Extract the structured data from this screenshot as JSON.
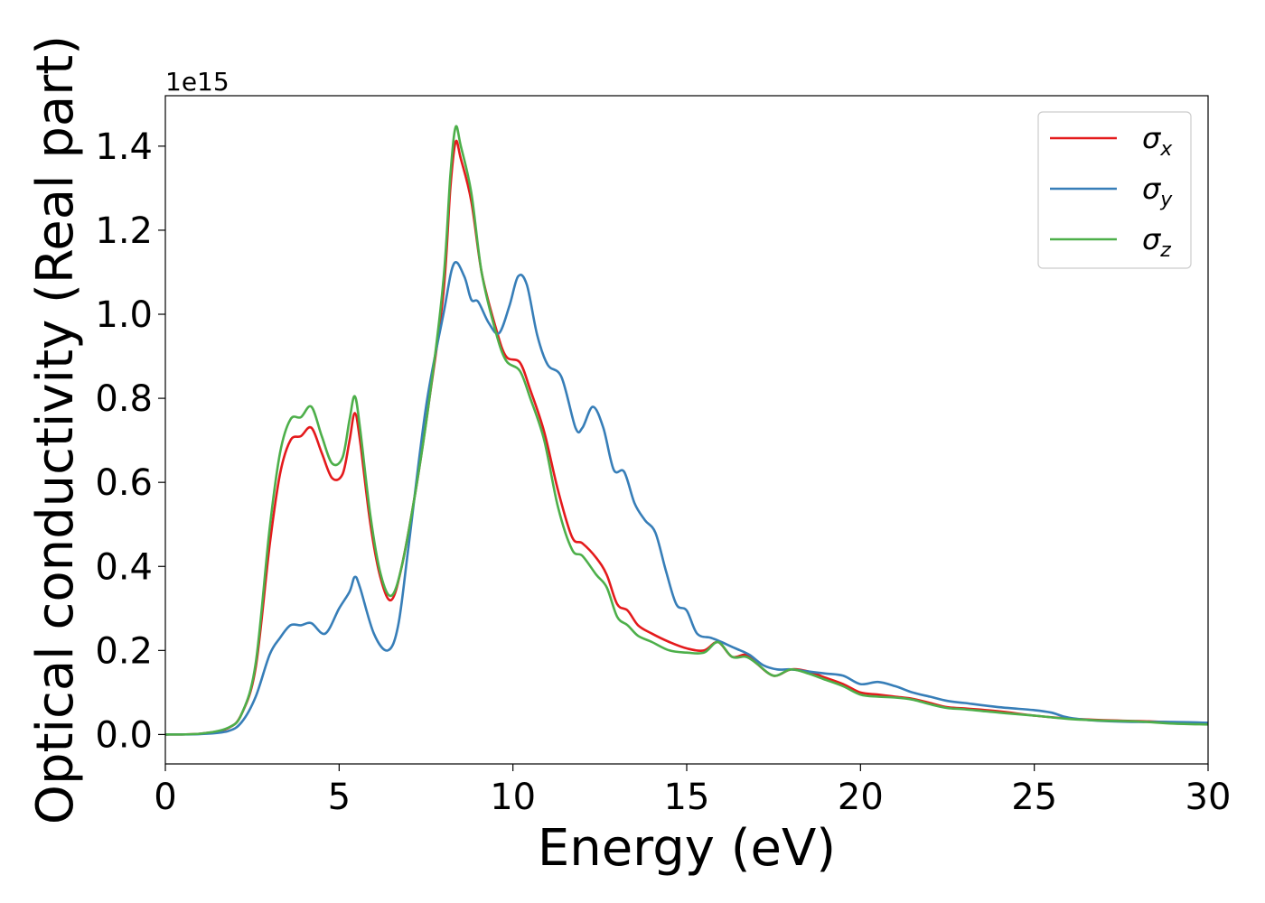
{
  "chart_data": {
    "type": "line",
    "xlabel": "Energy (eV)",
    "ylabel": "Optical conductivity (Real part)",
    "y_offset_label": "1e15",
    "xlim": [
      0,
      30
    ],
    "ylim": [
      -0.07,
      1.52
    ],
    "x_ticks": [
      0,
      5,
      10,
      15,
      20,
      25,
      30
    ],
    "x_tick_labels": [
      "0",
      "5",
      "10",
      "15",
      "20",
      "25",
      "30"
    ],
    "y_ticks": [
      0.0,
      0.2,
      0.4,
      0.6,
      0.8,
      1.0,
      1.2,
      1.4
    ],
    "y_tick_labels": [
      "0.0",
      "0.2",
      "0.4",
      "0.6",
      "0.8",
      "1.0",
      "1.2",
      "1.4"
    ],
    "grid": false,
    "legend_position": "top-right",
    "series": [
      {
        "name": "σx",
        "legend_base": "σ",
        "legend_sub": "x",
        "color": "#e41a1c",
        "points": [
          [
            0,
            0
          ],
          [
            1.0,
            0.002
          ],
          [
            1.8,
            0.015
          ],
          [
            2.2,
            0.05
          ],
          [
            2.6,
            0.16
          ],
          [
            3.0,
            0.45
          ],
          [
            3.3,
            0.62
          ],
          [
            3.6,
            0.7
          ],
          [
            3.9,
            0.71
          ],
          [
            4.2,
            0.73
          ],
          [
            4.5,
            0.67
          ],
          [
            4.8,
            0.61
          ],
          [
            5.1,
            0.62
          ],
          [
            5.3,
            0.7
          ],
          [
            5.45,
            0.765
          ],
          [
            5.6,
            0.7
          ],
          [
            5.9,
            0.5
          ],
          [
            6.2,
            0.37
          ],
          [
            6.5,
            0.32
          ],
          [
            6.8,
            0.4
          ],
          [
            7.2,
            0.58
          ],
          [
            7.6,
            0.8
          ],
          [
            8.0,
            1.05
          ],
          [
            8.2,
            1.3
          ],
          [
            8.35,
            1.41
          ],
          [
            8.5,
            1.37
          ],
          [
            8.8,
            1.27
          ],
          [
            9.1,
            1.1
          ],
          [
            9.5,
            0.97
          ],
          [
            9.8,
            0.9
          ],
          [
            10.2,
            0.885
          ],
          [
            10.5,
            0.82
          ],
          [
            10.9,
            0.72
          ],
          [
            11.3,
            0.58
          ],
          [
            11.7,
            0.47
          ],
          [
            12.0,
            0.455
          ],
          [
            12.4,
            0.42
          ],
          [
            12.7,
            0.38
          ],
          [
            13.0,
            0.31
          ],
          [
            13.3,
            0.295
          ],
          [
            13.6,
            0.26
          ],
          [
            14.0,
            0.24
          ],
          [
            14.5,
            0.22
          ],
          [
            15.0,
            0.205
          ],
          [
            15.5,
            0.2
          ],
          [
            15.9,
            0.22
          ],
          [
            16.3,
            0.185
          ],
          [
            16.7,
            0.19
          ],
          [
            17.0,
            0.17
          ],
          [
            17.5,
            0.14
          ],
          [
            18.0,
            0.155
          ],
          [
            18.5,
            0.15
          ],
          [
            19.0,
            0.135
          ],
          [
            19.5,
            0.12
          ],
          [
            20.0,
            0.1
          ],
          [
            20.5,
            0.095
          ],
          [
            21.0,
            0.09
          ],
          [
            21.5,
            0.085
          ],
          [
            22.0,
            0.075
          ],
          [
            22.5,
            0.065
          ],
          [
            23.0,
            0.062
          ],
          [
            24.0,
            0.055
          ],
          [
            25.0,
            0.045
          ],
          [
            26.0,
            0.038
          ],
          [
            27.0,
            0.034
          ],
          [
            28.0,
            0.032
          ],
          [
            29.0,
            0.029
          ],
          [
            30.0,
            0.027
          ]
        ]
      },
      {
        "name": "σy",
        "legend_base": "σ",
        "legend_sub": "y",
        "color": "#377eb8",
        "points": [
          [
            0,
            0
          ],
          [
            1.0,
            0.001
          ],
          [
            1.8,
            0.008
          ],
          [
            2.2,
            0.03
          ],
          [
            2.6,
            0.09
          ],
          [
            3.0,
            0.19
          ],
          [
            3.3,
            0.23
          ],
          [
            3.6,
            0.26
          ],
          [
            3.9,
            0.26
          ],
          [
            4.2,
            0.265
          ],
          [
            4.6,
            0.24
          ],
          [
            5.0,
            0.3
          ],
          [
            5.3,
            0.34
          ],
          [
            5.45,
            0.375
          ],
          [
            5.6,
            0.35
          ],
          [
            6.0,
            0.24
          ],
          [
            6.4,
            0.2
          ],
          [
            6.7,
            0.26
          ],
          [
            7.0,
            0.45
          ],
          [
            7.5,
            0.78
          ],
          [
            8.0,
            1.0
          ],
          [
            8.3,
            1.12
          ],
          [
            8.6,
            1.09
          ],
          [
            8.8,
            1.035
          ],
          [
            9.0,
            1.03
          ],
          [
            9.3,
            0.98
          ],
          [
            9.6,
            0.955
          ],
          [
            9.9,
            1.02
          ],
          [
            10.15,
            1.09
          ],
          [
            10.4,
            1.07
          ],
          [
            10.7,
            0.95
          ],
          [
            11.0,
            0.88
          ],
          [
            11.4,
            0.85
          ],
          [
            11.8,
            0.73
          ],
          [
            12.0,
            0.73
          ],
          [
            12.3,
            0.78
          ],
          [
            12.6,
            0.73
          ],
          [
            12.9,
            0.63
          ],
          [
            13.2,
            0.625
          ],
          [
            13.5,
            0.55
          ],
          [
            13.8,
            0.51
          ],
          [
            14.1,
            0.48
          ],
          [
            14.4,
            0.39
          ],
          [
            14.7,
            0.31
          ],
          [
            15.0,
            0.295
          ],
          [
            15.3,
            0.24
          ],
          [
            15.7,
            0.23
          ],
          [
            16.0,
            0.22
          ],
          [
            16.4,
            0.205
          ],
          [
            16.8,
            0.19
          ],
          [
            17.2,
            0.165
          ],
          [
            17.6,
            0.155
          ],
          [
            18.0,
            0.155
          ],
          [
            18.5,
            0.15
          ],
          [
            19.0,
            0.145
          ],
          [
            19.5,
            0.14
          ],
          [
            20.0,
            0.12
          ],
          [
            20.5,
            0.125
          ],
          [
            21.0,
            0.115
          ],
          [
            21.5,
            0.1
          ],
          [
            22.0,
            0.09
          ],
          [
            22.5,
            0.08
          ],
          [
            23.0,
            0.075
          ],
          [
            24.0,
            0.065
          ],
          [
            25.0,
            0.058
          ],
          [
            25.5,
            0.052
          ],
          [
            26.0,
            0.04
          ],
          [
            27.0,
            0.032
          ],
          [
            28.0,
            0.03
          ],
          [
            29.0,
            0.03
          ],
          [
            30.0,
            0.028
          ]
        ]
      },
      {
        "name": "σz",
        "legend_base": "σ",
        "legend_sub": "z",
        "color": "#4daf4a",
        "points": [
          [
            0,
            0
          ],
          [
            1.0,
            0.002
          ],
          [
            1.8,
            0.016
          ],
          [
            2.2,
            0.05
          ],
          [
            2.6,
            0.17
          ],
          [
            3.0,
            0.49
          ],
          [
            3.3,
            0.67
          ],
          [
            3.6,
            0.75
          ],
          [
            3.9,
            0.755
          ],
          [
            4.2,
            0.78
          ],
          [
            4.5,
            0.71
          ],
          [
            4.8,
            0.645
          ],
          [
            5.1,
            0.66
          ],
          [
            5.3,
            0.75
          ],
          [
            5.45,
            0.805
          ],
          [
            5.6,
            0.73
          ],
          [
            5.9,
            0.52
          ],
          [
            6.2,
            0.38
          ],
          [
            6.5,
            0.33
          ],
          [
            6.8,
            0.4
          ],
          [
            7.2,
            0.58
          ],
          [
            7.6,
            0.8
          ],
          [
            8.0,
            1.08
          ],
          [
            8.2,
            1.33
          ],
          [
            8.35,
            1.445
          ],
          [
            8.5,
            1.4
          ],
          [
            8.8,
            1.29
          ],
          [
            9.1,
            1.1
          ],
          [
            9.5,
            0.96
          ],
          [
            9.8,
            0.89
          ],
          [
            10.2,
            0.865
          ],
          [
            10.5,
            0.8
          ],
          [
            10.9,
            0.7
          ],
          [
            11.3,
            0.54
          ],
          [
            11.7,
            0.44
          ],
          [
            12.0,
            0.425
          ],
          [
            12.4,
            0.38
          ],
          [
            12.7,
            0.35
          ],
          [
            13.0,
            0.28
          ],
          [
            13.3,
            0.26
          ],
          [
            13.6,
            0.235
          ],
          [
            14.0,
            0.22
          ],
          [
            14.5,
            0.2
          ],
          [
            15.0,
            0.195
          ],
          [
            15.5,
            0.195
          ],
          [
            15.9,
            0.22
          ],
          [
            16.3,
            0.185
          ],
          [
            16.7,
            0.185
          ],
          [
            17.0,
            0.17
          ],
          [
            17.5,
            0.14
          ],
          [
            18.0,
            0.155
          ],
          [
            18.5,
            0.145
          ],
          [
            19.0,
            0.13
          ],
          [
            19.5,
            0.115
          ],
          [
            20.0,
            0.095
          ],
          [
            20.5,
            0.09
          ],
          [
            21.0,
            0.088
          ],
          [
            21.5,
            0.083
          ],
          [
            22.0,
            0.072
          ],
          [
            22.5,
            0.063
          ],
          [
            23.0,
            0.06
          ],
          [
            24.0,
            0.052
          ],
          [
            25.0,
            0.045
          ],
          [
            26.0,
            0.037
          ],
          [
            27.0,
            0.033
          ],
          [
            28.0,
            0.031
          ],
          [
            29.0,
            0.026
          ],
          [
            30.0,
            0.024
          ]
        ]
      }
    ]
  }
}
